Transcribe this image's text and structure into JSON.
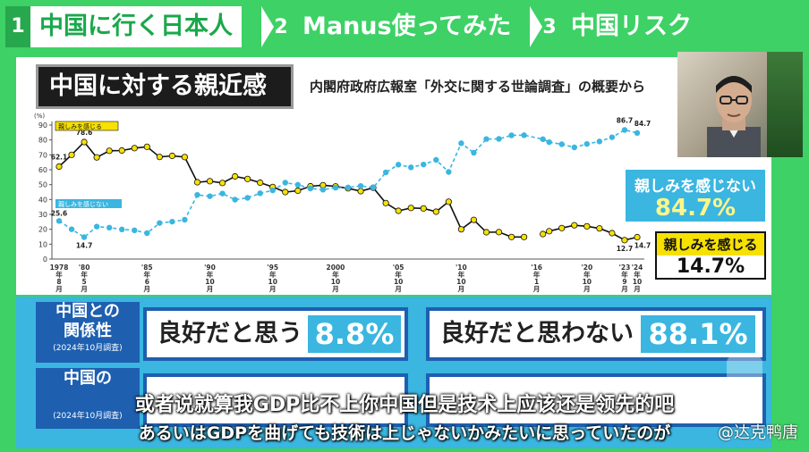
{
  "tabs": [
    {
      "num": "1",
      "label": "中国に行く日本人",
      "active": true
    },
    {
      "num": "2",
      "label": "Manus使ってみた",
      "active": false
    },
    {
      "num": "3",
      "label": "中国リスク",
      "active": false
    }
  ],
  "panel": {
    "title": "中国に対する親近感",
    "source": "内閣府政府広報室「外交に関する世論調査」の概要から"
  },
  "callouts": {
    "not_close_label": "親しみを感じない",
    "not_close_value": "84.7%",
    "close_label": "親しみを感じる",
    "close_value": "14.7%"
  },
  "relationship": {
    "row1_label_line1": "中国との",
    "row1_label_line2": "関係性",
    "row1_label_note": "(2024年10月調査)",
    "good_text": "良好だと思う",
    "good_value": "8.8%",
    "not_good_text": "良好だと思わない",
    "not_good_value": "88.1%",
    "row2_label_line1": "中国の",
    "row2_label_note": "(2024年10月調査)"
  },
  "subtitles": {
    "cn": "或者说就算我GDP比不上你中国但是技术上应该还是领先的吧",
    "jp": "あるいはGDPを曲げても技術は上じゃないかみたいに思っていたのが",
    "watermark": "@达克鸭唐"
  },
  "chart_data": {
    "type": "line",
    "ylabel": "(%)",
    "ylim": [
      0,
      90
    ],
    "yticks": [
      0,
      10,
      20,
      30,
      40,
      50,
      60,
      70,
      80,
      90
    ],
    "xticks": [
      {
        "x": 1978,
        "lines": [
          "1978",
          "年",
          "8",
          "月"
        ]
      },
      {
        "x": 1980,
        "lines": [
          "'80",
          "年",
          "5",
          "月"
        ]
      },
      {
        "x": 1985,
        "lines": [
          "'85",
          "年",
          "6",
          "月"
        ]
      },
      {
        "x": 1990,
        "lines": [
          "'90",
          "年",
          "10",
          "月"
        ]
      },
      {
        "x": 1995,
        "lines": [
          "'95",
          "年",
          "10",
          "月"
        ]
      },
      {
        "x": 2000,
        "lines": [
          "2000",
          "年",
          "10",
          "月"
        ]
      },
      {
        "x": 2005,
        "lines": [
          "'05",
          "年",
          "10",
          "月"
        ]
      },
      {
        "x": 2010,
        "lines": [
          "'10",
          "年",
          "10",
          "月"
        ]
      },
      {
        "x": 2016,
        "lines": [
          "'16",
          "年",
          "1",
          "月"
        ]
      },
      {
        "x": 2020,
        "lines": [
          "'20",
          "年",
          "10",
          "月"
        ]
      },
      {
        "x": 2023,
        "lines": [
          "'23",
          "年",
          "9",
          "月"
        ]
      },
      {
        "x": 2024,
        "lines": [
          "'24",
          "年",
          "10",
          "月"
        ]
      }
    ],
    "series": [
      {
        "name": "親しみを感じる",
        "color": "#111111",
        "marker": "#f7e100",
        "points": [
          [
            1978,
            62.1
          ],
          [
            1979,
            70.0
          ],
          [
            1980,
            78.6
          ],
          [
            1981,
            68.3
          ],
          [
            1982,
            72.7
          ],
          [
            1983,
            72.9
          ],
          [
            1984,
            74.5
          ],
          [
            1985,
            75.4
          ],
          [
            1986,
            68.6
          ],
          [
            1987,
            69.3
          ],
          [
            1988,
            68.5
          ],
          [
            1989,
            51.6
          ],
          [
            1990,
            52.3
          ],
          [
            1991,
            51.1
          ],
          [
            1992,
            55.5
          ],
          [
            1993,
            53.8
          ],
          [
            1994,
            51.3
          ],
          [
            1995,
            48.4
          ],
          [
            1996,
            45.0
          ],
          [
            1997,
            45.9
          ],
          [
            1998,
            48.9
          ],
          [
            1999,
            49.6
          ],
          [
            2000,
            48.8
          ],
          [
            2001,
            47.5
          ],
          [
            2002,
            45.6
          ],
          [
            2003,
            47.9
          ],
          [
            2004,
            37.6
          ],
          [
            2005,
            32.4
          ],
          [
            2006,
            34.3
          ],
          [
            2007,
            34.0
          ],
          [
            2008,
            31.8
          ],
          [
            2009,
            38.5
          ],
          [
            2010,
            20.0
          ],
          [
            2011,
            26.3
          ],
          [
            2012,
            18.0
          ],
          [
            2013,
            18.1
          ],
          [
            2014,
            14.8
          ],
          [
            2015,
            14.8
          ],
          [
            2016.5,
            16.8
          ],
          [
            2017,
            18.7
          ],
          [
            2018,
            20.8
          ],
          [
            2019,
            22.7
          ],
          [
            2020,
            22.0
          ],
          [
            2021,
            20.6
          ],
          [
            2022,
            17.4
          ],
          [
            2023,
            12.7
          ],
          [
            2024,
            14.7
          ]
        ],
        "gaps": [
          [
            2015,
            2016.5
          ]
        ],
        "labels": [
          {
            "x": 1978,
            "y": 62.1,
            "text": "62.1"
          },
          {
            "x": 1980,
            "y": 78.6,
            "text": "78.6"
          },
          {
            "x": 2023,
            "y": 12.7,
            "text": "12.7"
          },
          {
            "x": 2024,
            "y": 14.7,
            "text": "14.7"
          }
        ]
      },
      {
        "name": "親しみを感じない",
        "color": "#3ab6e0",
        "marker": "#3ab6e0",
        "points": [
          [
            1978,
            25.6
          ],
          [
            1979,
            20.0
          ],
          [
            1980,
            14.7
          ],
          [
            1981,
            21.8
          ],
          [
            1982,
            21.1
          ],
          [
            1983,
            19.9
          ],
          [
            1984,
            19.3
          ],
          [
            1985,
            17.4
          ],
          [
            1986,
            24.2
          ],
          [
            1987,
            25.1
          ],
          [
            1988,
            26.4
          ],
          [
            1989,
            43.1
          ],
          [
            1990,
            42.2
          ],
          [
            1991,
            44.0
          ],
          [
            1992,
            39.9
          ],
          [
            1993,
            41.1
          ],
          [
            1994,
            44.2
          ],
          [
            1995,
            46.1
          ],
          [
            1996,
            51.3
          ],
          [
            1997,
            49.9
          ],
          [
            1998,
            47.4
          ],
          [
            1999,
            46.6
          ],
          [
            2000,
            47.9
          ],
          [
            2001,
            48.1
          ],
          [
            2002,
            49.1
          ],
          [
            2003,
            48.0
          ],
          [
            2004,
            58.2
          ],
          [
            2005,
            63.4
          ],
          [
            2006,
            61.6
          ],
          [
            2007,
            63.5
          ],
          [
            2008,
            66.6
          ],
          [
            2009,
            58.5
          ],
          [
            2010,
            77.8
          ],
          [
            2011,
            71.4
          ],
          [
            2012,
            80.6
          ],
          [
            2013,
            80.7
          ],
          [
            2014,
            83.1
          ],
          [
            2015,
            83.2
          ],
          [
            2016.5,
            80.5
          ],
          [
            2017,
            78.5
          ],
          [
            2018,
            77.1
          ],
          [
            2019,
            75.0
          ],
          [
            2020,
            77.3
          ],
          [
            2021,
            79.0
          ],
          [
            2022,
            81.8
          ],
          [
            2023,
            86.7
          ],
          [
            2024,
            84.7
          ]
        ],
        "gaps": [],
        "dashed": true,
        "labels": [
          {
            "x": 1978,
            "y": 25.6,
            "text": "25.6"
          },
          {
            "x": 1980,
            "y": 14.7,
            "text": "14.7"
          },
          {
            "x": 2023,
            "y": 86.7,
            "text": "86.7"
          },
          {
            "x": 2024,
            "y": 84.7,
            "text": "84.7"
          }
        ]
      }
    ]
  }
}
